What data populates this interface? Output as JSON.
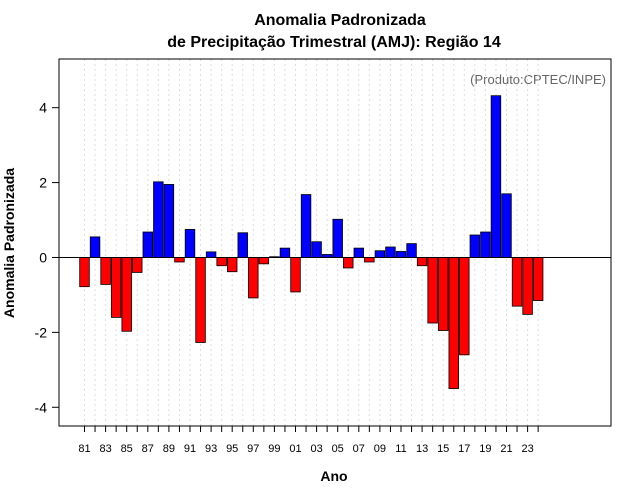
{
  "chart_data": {
    "type": "bar",
    "title": "Anomalia Padronizada",
    "subtitle": "de Precipitação Trimestral (AMJ): Região 14",
    "xlabel": "Ano",
    "ylabel": "Anomalia Padronizada",
    "annotation": "(Produto:CPTEC/INPE)",
    "ylim": [
      -4.5,
      5.3
    ],
    "yticks": [
      -4,
      -2,
      0,
      2,
      4
    ],
    "x_tick_labels": [
      "81",
      "83",
      "85",
      "87",
      "89",
      "91",
      "93",
      "95",
      "97",
      "99",
      "01",
      "03",
      "05",
      "07",
      "09",
      "11",
      "13",
      "15",
      "17",
      "19",
      "21",
      "23"
    ],
    "categories": [
      "1981",
      "1982",
      "1983",
      "1984",
      "1985",
      "1986",
      "1987",
      "1988",
      "1989",
      "1990",
      "1991",
      "1992",
      "1993",
      "1994",
      "1995",
      "1996",
      "1997",
      "1998",
      "1999",
      "2000",
      "2001",
      "2002",
      "2003",
      "2004",
      "2005",
      "2006",
      "2007",
      "2008",
      "2009",
      "2010",
      "2011",
      "2012",
      "2013",
      "2014",
      "2015",
      "2016",
      "2017",
      "2018",
      "2019",
      "2020",
      "2021",
      "2022",
      "2023",
      "2024"
    ],
    "values": [
      -0.78,
      0.55,
      -0.72,
      -1.6,
      -1.97,
      -0.4,
      0.68,
      2.02,
      1.95,
      -0.12,
      0.75,
      -2.27,
      0.15,
      -0.22,
      -0.38,
      0.66,
      -1.08,
      -0.17,
      0.02,
      0.25,
      -0.92,
      1.68,
      0.42,
      0.08,
      1.02,
      -0.28,
      0.25,
      -0.12,
      0.18,
      0.28,
      0.16,
      0.37,
      -0.22,
      -1.75,
      -1.95,
      -3.5,
      -2.6,
      0.6,
      0.68,
      4.32,
      1.7,
      -1.3,
      -1.52,
      -1.15
    ],
    "positive_color": "#0000ff",
    "negative_color": "#ff0000",
    "grid": true
  }
}
